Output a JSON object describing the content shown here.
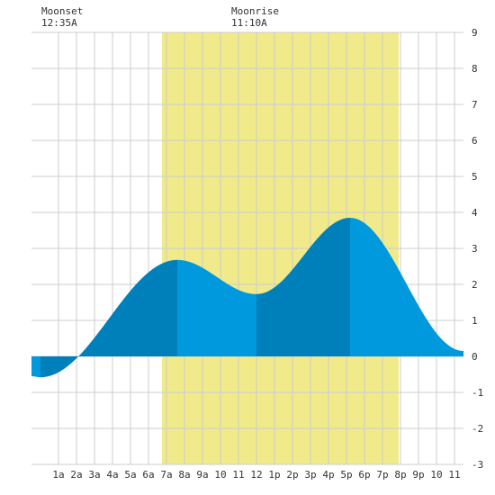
{
  "chart_data": {
    "type": "area",
    "moonset": {
      "label": "Moonset",
      "time": "12:35A",
      "hour": 0.58
    },
    "moonrise": {
      "label": "Moonrise",
      "time": "11:10A",
      "hour": 11.17
    },
    "daylight": {
      "start_hour": 6.75,
      "end_hour": 19.9
    },
    "xlim": [
      -0.5,
      23.5
    ],
    "ylim": [
      -3,
      9
    ],
    "x_ticks": [
      {
        "hour": 1,
        "label": "1a"
      },
      {
        "hour": 2,
        "label": "2a"
      },
      {
        "hour": 3,
        "label": "3a"
      },
      {
        "hour": 4,
        "label": "4a"
      },
      {
        "hour": 5,
        "label": "5a"
      },
      {
        "hour": 6,
        "label": "6a"
      },
      {
        "hour": 7,
        "label": "7a"
      },
      {
        "hour": 8,
        "label": "8a"
      },
      {
        "hour": 9,
        "label": "9a"
      },
      {
        "hour": 10,
        "label": "10"
      },
      {
        "hour": 11,
        "label": "11"
      },
      {
        "hour": 12,
        "label": "12"
      },
      {
        "hour": 13,
        "label": "1p"
      },
      {
        "hour": 14,
        "label": "2p"
      },
      {
        "hour": 15,
        "label": "3p"
      },
      {
        "hour": 16,
        "label": "4p"
      },
      {
        "hour": 17,
        "label": "5p"
      },
      {
        "hour": 18,
        "label": "6p"
      },
      {
        "hour": 19,
        "label": "7p"
      },
      {
        "hour": 20,
        "label": "8p"
      },
      {
        "hour": 21,
        "label": "9p"
      },
      {
        "hour": 22,
        "label": "10"
      },
      {
        "hour": 23,
        "label": "11"
      }
    ],
    "y_ticks": [
      -3,
      -2,
      -1,
      0,
      1,
      2,
      3,
      4,
      5,
      6,
      7,
      8,
      9
    ],
    "extremes": [
      {
        "type": "low",
        "hour": -0.5,
        "value": -0.55
      },
      {
        "type": "low",
        "hour": 0.0,
        "value": -0.58
      },
      {
        "type": "high",
        "hour": 7.6,
        "value": 2.68
      },
      {
        "type": "low",
        "hour": 12.0,
        "value": 1.73
      },
      {
        "type": "high",
        "hour": 17.2,
        "value": 3.85
      },
      {
        "type": "low",
        "hour": 23.5,
        "value": 0.15
      }
    ],
    "colors": {
      "daylight": "#f0ea8a",
      "tide_light": "#0099dd",
      "tide_dark": "#0080bb",
      "grid": "#cccccc",
      "background": "#ffffff"
    }
  }
}
